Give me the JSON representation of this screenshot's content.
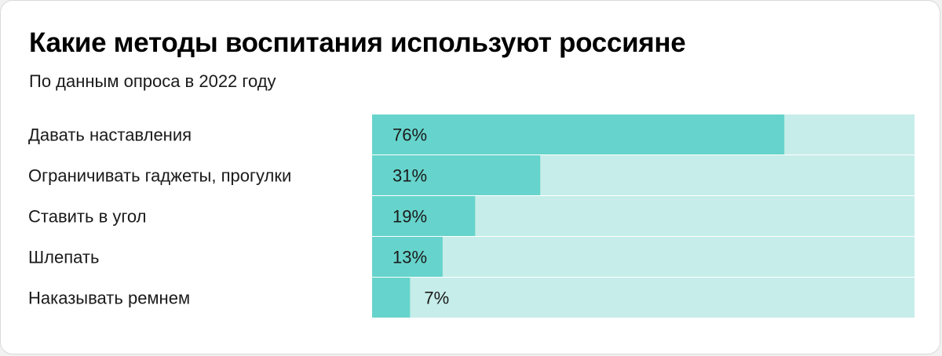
{
  "title": "Какие методы воспитания используют россияне",
  "subtitle": "По данным опроса в 2022 году",
  "colors": {
    "bar_fill": "#66d4cc",
    "bar_track": "#c6ede9",
    "divider": "#ffffff"
  },
  "chart_data": {
    "type": "bar",
    "orientation": "horizontal",
    "title": "Какие методы воспитания используют россияне",
    "subtitle": "По данным опроса в 2022 году",
    "categories": [
      "Давать наставления",
      "Ограничивать гаджеты, прогулки",
      "Ставить в угол",
      "Шлепать",
      "Наказывать ремнем"
    ],
    "values": [
      76,
      31,
      19,
      13,
      7
    ],
    "value_labels": [
      "76%",
      "31%",
      "19%",
      "13%",
      "7%"
    ],
    "unit": "%",
    "xlim": [
      0,
      100
    ],
    "grid": false,
    "legend": "none"
  }
}
